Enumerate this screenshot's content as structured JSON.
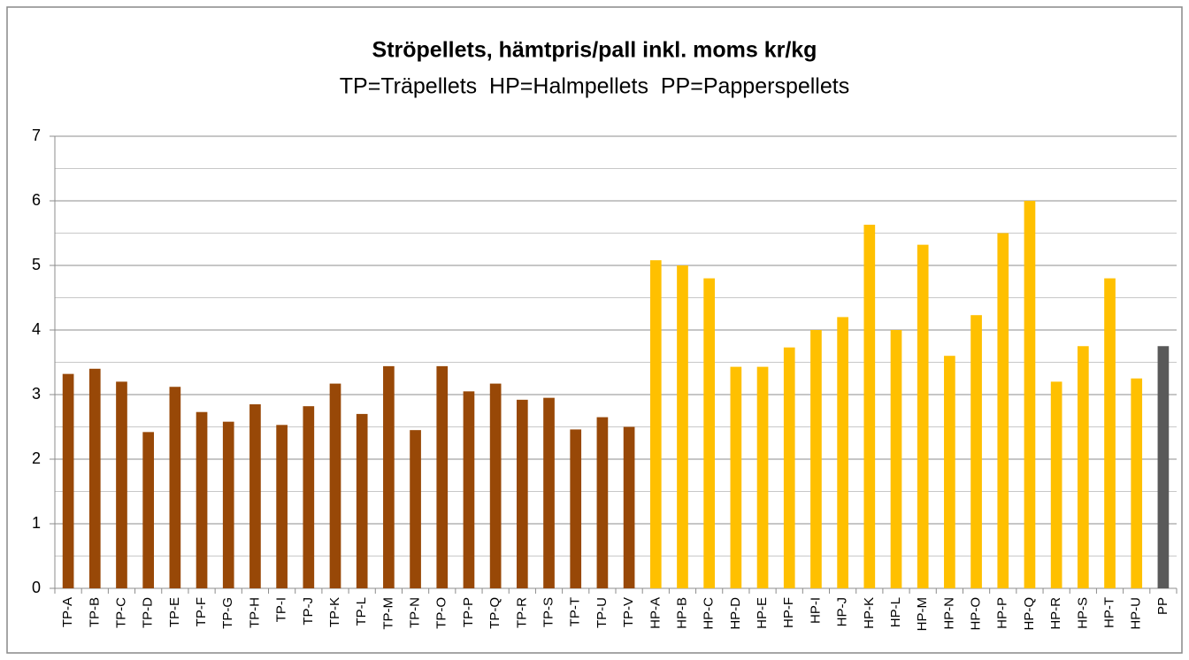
{
  "chart_data": {
    "type": "bar",
    "title": "Ströpellets, hämtpris/pall inkl. moms kr/kg",
    "subtitle": "TP=Träpellets  HP=Halmpellets  PP=Papperspellets",
    "categories": [
      "TP-A",
      "TP-B",
      "TP-C",
      "TP-D",
      "TP-E",
      "TP-F",
      "TP-G",
      "TP-H",
      "TP-I",
      "TP-J",
      "TP-K",
      "TP-L",
      "TP-M",
      "TP-N",
      "TP-O",
      "TP-P",
      "TP-Q",
      "TP-R",
      "TP-S",
      "TP-T",
      "TP-U",
      "TP-V",
      "HP-A",
      "HP-B",
      "HP-C",
      "HP-D",
      "HP-E",
      "HP-F",
      "HP-I",
      "HP-J",
      "HP-K",
      "HP-L",
      "HP-M",
      "HP-N",
      "HP-O",
      "HP-P",
      "HP-Q",
      "HP-R",
      "HP-S",
      "HP-T",
      "HP-U",
      "PP"
    ],
    "values": [
      3.32,
      3.4,
      3.2,
      2.42,
      3.12,
      2.73,
      2.58,
      2.85,
      2.53,
      2.82,
      3.17,
      2.7,
      3.44,
      2.45,
      3.44,
      3.05,
      3.17,
      2.92,
      2.95,
      2.46,
      2.65,
      2.5,
      5.08,
      5.0,
      4.8,
      3.43,
      3.43,
      3.73,
      4.0,
      4.2,
      5.63,
      4.0,
      5.32,
      3.6,
      4.23,
      5.5,
      6.0,
      3.2,
      3.75,
      4.8,
      3.25,
      3.75
    ],
    "colors": [
      "#984807",
      "#984807",
      "#984807",
      "#984807",
      "#984807",
      "#984807",
      "#984807",
      "#984807",
      "#984807",
      "#984807",
      "#984807",
      "#984807",
      "#984807",
      "#984807",
      "#984807",
      "#984807",
      "#984807",
      "#984807",
      "#984807",
      "#984807",
      "#984807",
      "#984807",
      "#ffc000",
      "#ffc000",
      "#ffc000",
      "#ffc000",
      "#ffc000",
      "#ffc000",
      "#ffc000",
      "#ffc000",
      "#ffc000",
      "#ffc000",
      "#ffc000",
      "#ffc000",
      "#ffc000",
      "#ffc000",
      "#ffc000",
      "#ffc000",
      "#ffc000",
      "#ffc000",
      "#ffc000",
      "#595959"
    ],
    "ylim": [
      0,
      7
    ],
    "yticks": [
      0,
      1,
      2,
      3,
      4,
      5,
      6,
      7
    ],
    "yminor": [
      0.5,
      1.5,
      2.5,
      3.5,
      4.5,
      5.5,
      6.5
    ],
    "grid": true
  }
}
